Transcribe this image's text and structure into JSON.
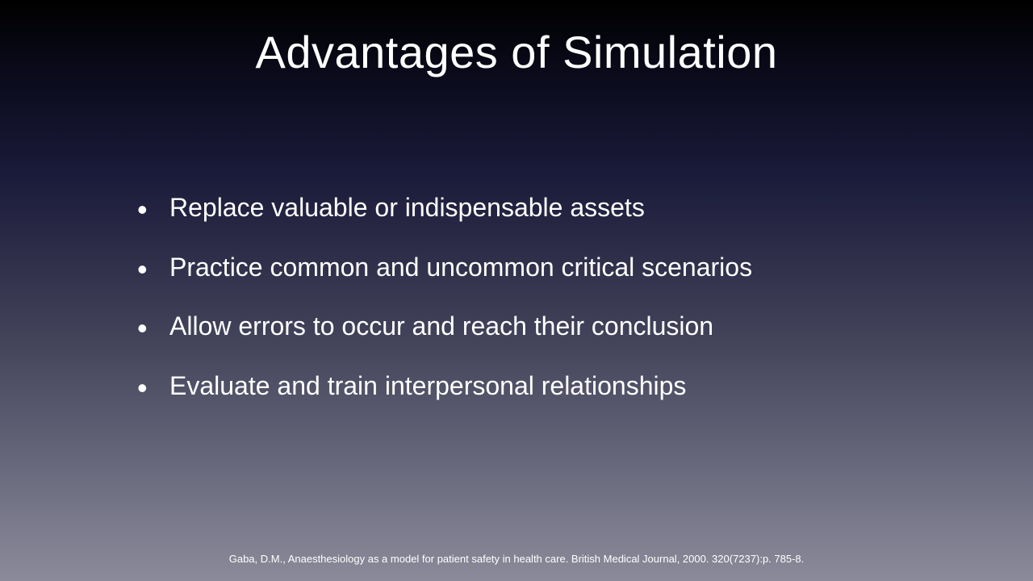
{
  "slide": {
    "title": "Advantages of Simulation",
    "bullets": [
      "Replace valuable or indispensable assets",
      "Practice common and uncommon critical scenarios",
      "Allow errors to occur and reach their conclusion",
      "Evaluate and train interpersonal relationships"
    ],
    "citation": "Gaba, D.M., Anaesthesiology as a model for patient safety in health care. British Medical Journal, 2000. 320(7237):p. 785-8."
  },
  "style": {
    "background_gradient_top": "#000000",
    "background_gradient_mid1": "#0a0a1a",
    "background_gradient_mid2": "#1a1a3a",
    "background_gradient_mid3": "#45455c",
    "background_gradient_bottom": "#8a8a9a",
    "text_color": "#ffffff",
    "title_fontsize": 56,
    "bullet_fontsize": 32,
    "citation_fontsize": 13,
    "font_family": "Gill Sans"
  }
}
